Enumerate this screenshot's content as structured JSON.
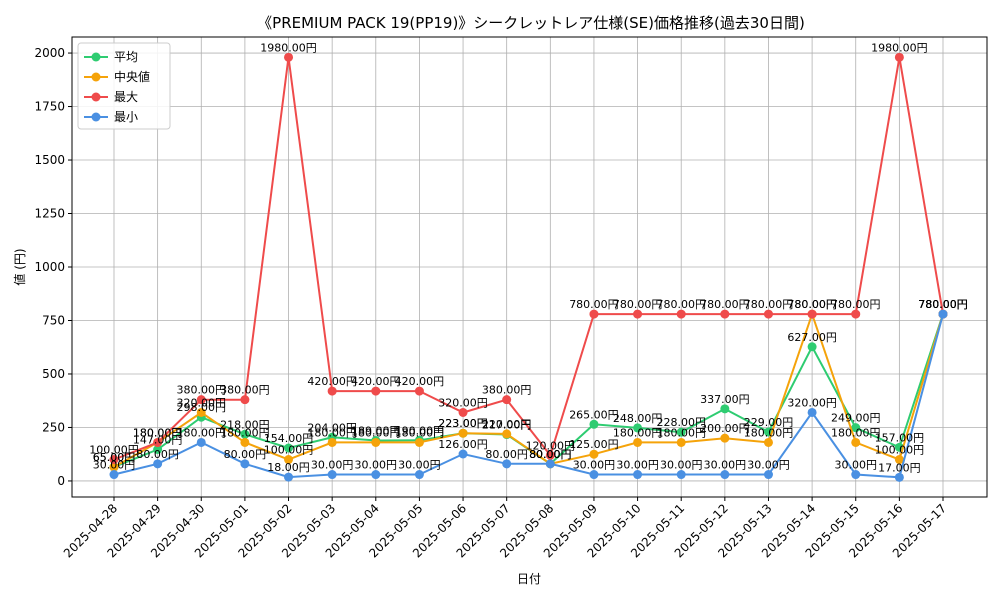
{
  "chart_data": {
    "type": "line",
    "title": "《PREMIUM PACK 19(PP19)》シークレットレア仕様(SE)価格推移(過去30日間)",
    "xlabel": "日付",
    "ylabel": "値 (円)",
    "ylim": [
      -75,
      2075
    ],
    "yticks": [
      0,
      250,
      500,
      750,
      1000,
      1250,
      1500,
      1750,
      2000
    ],
    "grid": true,
    "legend_position": "top-left",
    "x": [
      "2025-04-28",
      "2025-04-29",
      "2025-04-30",
      "2025-05-01",
      "2025-05-02",
      "2025-05-03",
      "2025-05-04",
      "2025-05-05",
      "2025-05-06",
      "2025-05-07",
      "2025-05-08",
      "2025-05-09",
      "2025-05-10",
      "2025-05-11",
      "2025-05-12",
      "2025-05-13",
      "2025-05-14",
      "2025-05-15",
      "2025-05-16",
      "2025-05-17"
    ],
    "series": [
      {
        "name": "平均",
        "color": "#2ecc71",
        "values": [
          65,
          147,
          298,
          218,
          154,
          204,
          189,
          190,
          223,
          217,
          80,
          265,
          248,
          228,
          337,
          229,
          627,
          249,
          157,
          780
        ],
        "labels": [
          "65.00円",
          "147.00円",
          "298.00円",
          "218.00円",
          "154.00円",
          "204.00円",
          "189.00円",
          "190.00円",
          "223.00円",
          "217.00円",
          "80.00円",
          "265.00円",
          "248.00円",
          "228.00円",
          "337.00円",
          "229.00円",
          "627.00円",
          "249.00円",
          "157.00円",
          "780.00円"
        ]
      },
      {
        "name": "中央値",
        "color": "#f5a30a",
        "values": [
          65,
          180,
          320,
          180,
          100,
          180,
          180,
          180,
          223,
          220,
          80,
          125,
          180,
          180,
          200,
          180,
          780,
          180,
          100,
          780
        ],
        "labels": [
          "65.00円",
          "180.00円",
          "320.00円",
          "180.00円",
          "100.00円",
          "180.00円",
          "180.00円",
          "180.00円",
          "223.00円",
          "220.00円",
          "80.00円",
          "125.00円",
          "180.00円",
          "180.00円",
          "200.00円",
          "180.00円",
          "780.00円",
          "180.00円",
          "100.00円",
          "780.00円"
        ]
      },
      {
        "name": "最大",
        "color": "#ef4b4b",
        "values": [
          100,
          180,
          380,
          380,
          1980,
          420,
          420,
          420,
          320,
          380,
          120,
          780,
          780,
          780,
          780,
          780,
          780,
          780,
          1980,
          780
        ],
        "labels": [
          "100.00円",
          "180.00円",
          "380.00円",
          "380.00円",
          "1980.00円",
          "420.00円",
          "420.00円",
          "420.00円",
          "320.00円",
          "380.00円",
          "120.00円",
          "780.00円",
          "780.00円",
          "780.00円",
          "780.00円",
          "780.00円",
          "780.00円",
          "780.00円",
          "1980.00円",
          "780.00円"
        ]
      },
      {
        "name": "最小",
        "color": "#4a90e2",
        "values": [
          30,
          80,
          180,
          80,
          18,
          30,
          30,
          30,
          126,
          80,
          80,
          30,
          30,
          30,
          30,
          30,
          320,
          30,
          17,
          780
        ],
        "labels": [
          "30.00円",
          "80.00円",
          "180.00円",
          "80.00円",
          "18.00円",
          "30.00円",
          "30.00円",
          "30.00円",
          "126.00円",
          "80.00円",
          "80.00円",
          "30.00円",
          "30.00円",
          "30.00円",
          "30.00円",
          "30.00円",
          "320.00円",
          "30.00円",
          "17.00円",
          "780.00円"
        ]
      }
    ]
  }
}
